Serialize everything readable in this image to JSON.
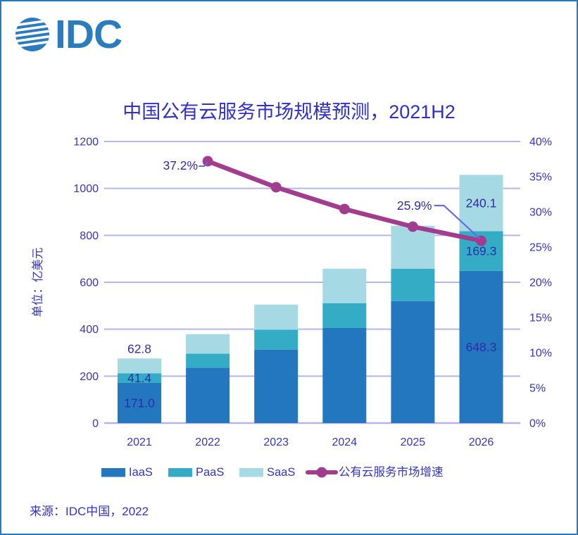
{
  "window": {
    "background": "#ffffff",
    "border_color": "#2878BE"
  },
  "logo": {
    "brand": "IDC",
    "color": "#2B7BBF"
  },
  "header": {
    "title": "中国公有云服务市场规模预测，2021H2",
    "color": "#3030C8"
  },
  "footer": {
    "source": "来源：IDC中国，2022"
  },
  "chart_data": {
    "type": "bar",
    "subtype": "stacked-bars-with-growth-line",
    "title": "中国公有云服务市场规模预测，2021H2",
    "categories": [
      "2021",
      "2022",
      "2023",
      "2024",
      "2025",
      "2026"
    ],
    "ylabel_left": "单位：亿美元",
    "left_axis": {
      "min": 0,
      "max": 1200,
      "step": 200,
      "tick_labels": [
        "0",
        "200",
        "400",
        "600",
        "800",
        "1000",
        "1200"
      ]
    },
    "right_axis": {
      "min": 0,
      "max": 40,
      "step": 5,
      "tick_labels": [
        "0%",
        "5%",
        "10%",
        "15%",
        "20%",
        "25%",
        "30%",
        "35%",
        "40%"
      ]
    },
    "grid": "horizontal",
    "legend_position": "bottom",
    "series": [
      {
        "name": "IaaS",
        "type": "bar",
        "stacked": true,
        "color": "#2377BE",
        "values": [
          171.0,
          236,
          313,
          405,
          520,
          648.3
        ]
      },
      {
        "name": "PaaS",
        "type": "bar",
        "stacked": true,
        "color": "#35ACC6",
        "values": [
          41.4,
          60,
          85,
          106,
          138,
          169.3
        ]
      },
      {
        "name": "SaaS",
        "type": "bar",
        "stacked": true,
        "color": "#A5D9E4",
        "values": [
          62.8,
          83,
          107,
          147,
          183,
          240.1
        ]
      },
      {
        "name": "公有云服务市场增速",
        "type": "line",
        "axis": "right",
        "color": "#A23C8E",
        "values": [
          null,
          37.2,
          33.5,
          30.4,
          27.9,
          25.9
        ]
      }
    ],
    "bar_value_labels": [
      {
        "category_index": 0,
        "series": "IaaS",
        "text": "171.0",
        "placement": "inside"
      },
      {
        "category_index": 0,
        "series": "PaaS",
        "text": "41.4",
        "placement": "inside"
      },
      {
        "category_index": 0,
        "series": "SaaS",
        "text": "62.8",
        "placement": "above-bar"
      },
      {
        "category_index": 5,
        "series": "IaaS",
        "text": "648.3",
        "placement": "inside"
      },
      {
        "category_index": 5,
        "series": "PaaS",
        "text": "169.3",
        "placement": "inside"
      },
      {
        "category_index": 5,
        "series": "SaaS",
        "text": "240.1",
        "placement": "inside"
      }
    ],
    "annotations": [
      {
        "text": "37.2%",
        "category_index": 1,
        "series": "公有云服务市场增速"
      },
      {
        "text": "25.9%",
        "category_index": 5,
        "series": "公有云服务市场增速"
      }
    ],
    "label_color": "#2D2DA8",
    "axis_text_color": "#3535BD",
    "gridline_color": "#B5B6E8",
    "connector_color": "#6A6ADF"
  }
}
